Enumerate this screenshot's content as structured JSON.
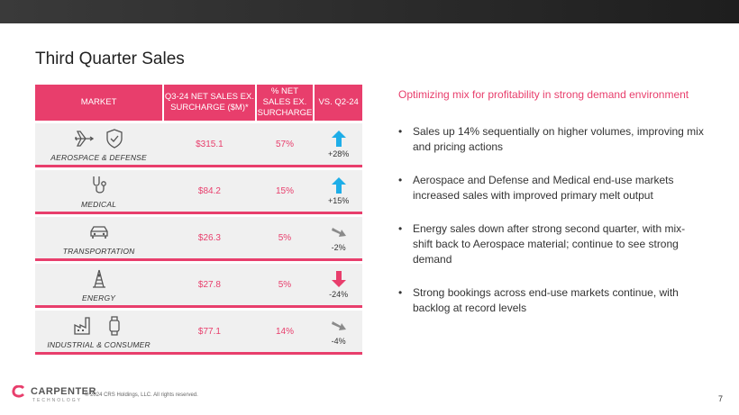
{
  "slide": {
    "title": "Third Quarter Sales",
    "page_number": "7",
    "copyright": "© 2024 CRS Holdings, LLC. All rights reserved.",
    "logo_text": "CARPENTER",
    "logo_sub": "TECHNOLOGY"
  },
  "table": {
    "headers": [
      "MARKET",
      "Q3-24 NET SALES EX. SURCHARGE ($M)*",
      "% NET SALES EX. SURCHARGE",
      "VS. Q2-24"
    ],
    "rows": [
      {
        "market": "AEROSPACE & DEFENSE",
        "sales": "$315.1",
        "pct": "57%",
        "delta": "+28%",
        "direction": "up",
        "icons": [
          "airplane-icon",
          "shield-icon"
        ]
      },
      {
        "market": "MEDICAL",
        "sales": "$84.2",
        "pct": "15%",
        "delta": "+15%",
        "direction": "up",
        "icons": [
          "stethoscope-icon"
        ]
      },
      {
        "market": "TRANSPORTATION",
        "sales": "$26.3",
        "pct": "5%",
        "delta": "-2%",
        "direction": "down-slight",
        "icons": [
          "car-icon"
        ]
      },
      {
        "market": "ENERGY",
        "sales": "$27.8",
        "pct": "5%",
        "delta": "-24%",
        "direction": "down",
        "icons": [
          "oil-rig-icon"
        ]
      },
      {
        "market": "INDUSTRIAL & CONSUMER",
        "sales": "$77.1",
        "pct": "14%",
        "delta": "-4%",
        "direction": "down-slight",
        "icons": [
          "factory-icon",
          "smartwatch-icon"
        ]
      }
    ]
  },
  "right_panel": {
    "heading": "Optimizing mix for profitability in strong demand environment",
    "bullets": [
      "Sales up 14% sequentially on higher volumes, improving mix and pricing actions",
      "Aerospace and Defense and Medical end-use markets increased sales with improved primary melt output",
      "Energy sales down after strong second quarter, with mix-shift back to Aerospace material; continue to see strong demand",
      "Strong bookings across end-use markets continue, with backlog at record levels"
    ]
  },
  "colors": {
    "accent": "#e83e6c",
    "up_arrow": "#1eaee8",
    "down_arrow": "#e83e6c",
    "slight_arrow": "#8a8a8a"
  }
}
